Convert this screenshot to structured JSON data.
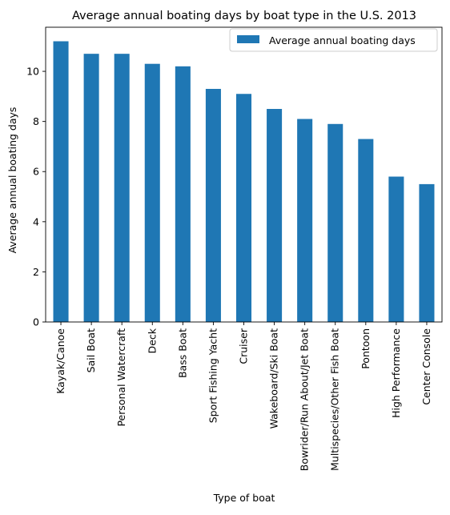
{
  "chart_data": {
    "type": "bar",
    "title": "Average annual boating days by boat type in the U.S. 2013",
    "xlabel": "Type of boat",
    "ylabel": "Average annual boating days",
    "categories": [
      "Kayak/Canoe",
      "Sail Boat",
      "Personal Watercraft",
      "Deck",
      "Bass Boat",
      "Sport Fishing Yacht",
      "Cruiser",
      "Wakeboard/Ski Boat",
      "Bowrider/Run About/Jet Boat",
      "Multispecies/Other Fish Boat",
      "Pontoon",
      "High Performance",
      "Center Console"
    ],
    "series": [
      {
        "name": "Average annual boating days",
        "values": [
          11.2,
          10.7,
          10.7,
          10.3,
          10.2,
          9.3,
          9.1,
          8.5,
          8.1,
          7.9,
          7.3,
          5.8,
          5.5
        ],
        "color": "#1f77b4"
      }
    ],
    "ylim": [
      0,
      11.76
    ],
    "yticks": [
      0,
      2,
      4,
      6,
      8,
      10
    ],
    "grid": false,
    "legend_position": "upper right"
  }
}
